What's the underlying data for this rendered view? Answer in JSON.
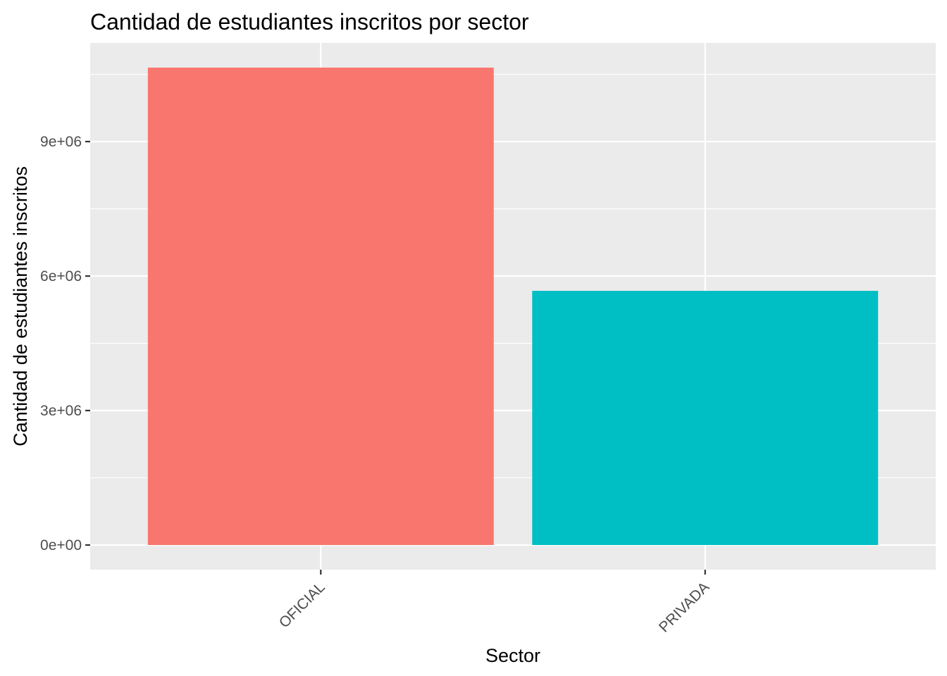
{
  "chart_data": {
    "type": "bar",
    "title": "Cantidad de estudiantes inscritos por sector",
    "xlabel": "Sector",
    "ylabel": "Cantidad de estudiantes inscritos",
    "categories": [
      "OFICIAL",
      "PRIVADA"
    ],
    "values": [
      10650000,
      5670000
    ],
    "colors": [
      "#F8766D",
      "#00BFC4"
    ],
    "ylim": [
      -550000,
      11200000
    ],
    "yticks": [
      0,
      3000000,
      6000000,
      9000000
    ],
    "ytick_labels": [
      "0e+00",
      "3e+06",
      "6e+06",
      "9e+06"
    ],
    "x_tick_rotation_deg": 45,
    "grid": true,
    "legend": "none",
    "panel_background": "#EBEBEB",
    "grid_color": "#FFFFFF"
  }
}
